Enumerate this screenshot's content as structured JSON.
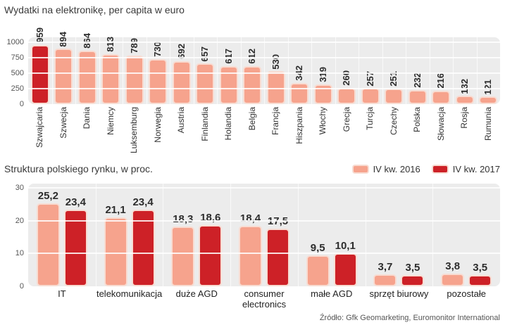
{
  "chart_data": [
    {
      "type": "bar",
      "title": "Wydatki na elektronikę, per capita w euro",
      "categories": [
        "Szwajcaria",
        "Szwecja",
        "Dania",
        "Niemcy",
        "Luksemburg",
        "Norwegia",
        "Austria",
        "Finlandia",
        "Holandia",
        "Belgia",
        "Francja",
        "Hiszpania",
        "Włochy",
        "Grecja",
        "Turcja",
        "Czechy",
        "Polska",
        "Słowacja",
        "Rosja",
        "Rumunia"
      ],
      "values": [
        959,
        894,
        864,
        813,
        789,
        730,
        692,
        657,
        617,
        612,
        530,
        342,
        319,
        260,
        257,
        251,
        232,
        216,
        132,
        121
      ],
      "ylim": [
        0,
        1000
      ],
      "yticks": [
        0,
        250,
        500,
        750,
        1000
      ],
      "grid": true,
      "legend_position": "none",
      "highlight_index": 0,
      "bar_color": "#f6a38d",
      "highlight_color": "#cd2127"
    },
    {
      "type": "grouped-bar",
      "title": "Struktura polskiego rynku, w proc.",
      "categories": [
        "IT",
        "telekomunikacja",
        "duże AGD",
        "consumer electronics",
        "małe AGD",
        "sprzęt biurowy",
        "pozostałe"
      ],
      "series": [
        {
          "name": "IV kw. 2016",
          "color": "#f6a38d",
          "values": [
            25.2,
            21.1,
            18.3,
            18.4,
            9.5,
            3.7,
            3.8
          ],
          "value_labels": [
            "25,2",
            "21,1",
            "18,3",
            "18,4",
            "9,5",
            "3,7",
            "3,8"
          ]
        },
        {
          "name": "IV kw. 2017",
          "color": "#cd2127",
          "values": [
            23.4,
            23.4,
            18.6,
            17.5,
            10.1,
            3.5,
            3.5
          ],
          "value_labels": [
            "23,4",
            "23,4",
            "18,6",
            "17,5",
            "10,1",
            "3,5",
            "3,5"
          ]
        }
      ],
      "ylim": [
        0,
        30
      ],
      "yticks": [
        0,
        10,
        20,
        30
      ],
      "grid": true,
      "legend_position": "top-right"
    }
  ],
  "source_note": "Źródło: Gfk Geomarketing, Euromonitor International",
  "colors": {
    "plot_background": "#ececec",
    "gridline": "#ffffff",
    "bar_border": "#f8dcd2",
    "value_text": "#2d2d2d"
  }
}
